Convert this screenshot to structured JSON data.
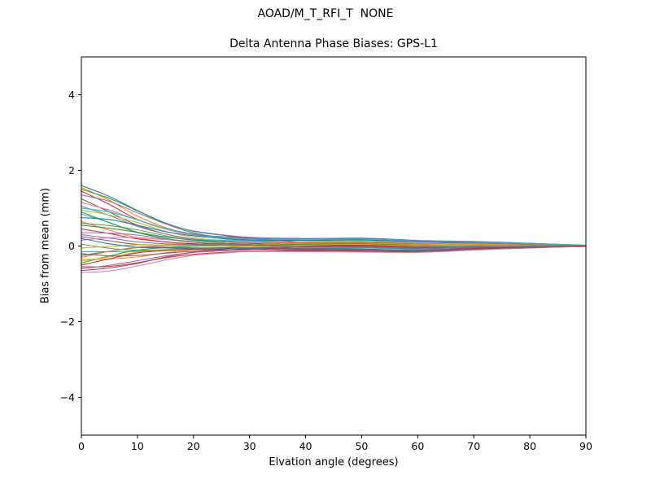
{
  "chart_data": {
    "type": "line",
    "suptitle": "AOAD/M_T_RFI_T  NONE",
    "title": "Delta Antenna Phase Biases: GPS-L1",
    "xlabel": "Elvation angle (degrees)",
    "ylabel": "Bias from mean (mm)",
    "xlim": [
      0,
      90
    ],
    "ylim": [
      -5,
      5
    ],
    "xticks": [
      0,
      10,
      20,
      30,
      40,
      50,
      60,
      70,
      80,
      90
    ],
    "xtick_labels": [
      "0",
      "10",
      "20",
      "30",
      "40",
      "50",
      "60",
      "70",
      "80",
      "90"
    ],
    "yticks": [
      -4,
      -2,
      0,
      2,
      4
    ],
    "ytick_labels": [
      "−4",
      "−2",
      "0",
      "2",
      "4"
    ],
    "grid": false,
    "legend": "none",
    "frame_color": "#000000",
    "palette": [
      "#1f77b4",
      "#ff7f0e",
      "#2ca02c",
      "#d62728",
      "#9467bd",
      "#8c564b",
      "#e377c2",
      "#7f7f7f",
      "#bcbd22",
      "#17becf"
    ],
    "x": [
      0,
      5,
      10,
      15,
      20,
      25,
      30,
      40,
      50,
      60,
      70,
      80,
      90
    ],
    "series": [
      {
        "name": "line-01",
        "values": [
          1.6,
          1.31,
          0.94,
          0.61,
          0.39,
          0.29,
          0.21,
          0.18,
          0.2,
          0.14,
          0.12,
          0.07,
          0.02
        ]
      },
      {
        "name": "line-02",
        "values": [
          1.55,
          1.21,
          0.79,
          0.49,
          0.3,
          0.22,
          0.17,
          0.07,
          0.08,
          0.03,
          0.03,
          0.03,
          0.02
        ]
      },
      {
        "name": "line-03",
        "values": [
          1.5,
          1.26,
          0.93,
          0.59,
          0.35,
          0.22,
          0.14,
          0.15,
          0.18,
          0.12,
          0.06,
          0.06,
          0.02
        ]
      },
      {
        "name": "line-04",
        "values": [
          1.45,
          1.1,
          0.7,
          0.45,
          0.3,
          0.25,
          0.21,
          0.09,
          0.06,
          0.0,
          0.03,
          0.03,
          0.01
        ]
      },
      {
        "name": "line-05",
        "values": [
          1.35,
          1.18,
          0.88,
          0.59,
          0.4,
          0.3,
          0.23,
          0.2,
          0.21,
          0.15,
          0.12,
          0.07,
          0.01
        ]
      },
      {
        "name": "line-06",
        "values": [
          1.25,
          0.9,
          0.55,
          0.32,
          0.18,
          0.12,
          0.08,
          0.01,
          0.0,
          -0.03,
          -0.01,
          0.01,
          0.01
        ]
      },
      {
        "name": "line-07",
        "values": [
          1.15,
          0.95,
          0.69,
          0.45,
          0.29,
          0.21,
          0.16,
          0.14,
          0.16,
          0.11,
          0.1,
          0.05,
          0.01
        ]
      },
      {
        "name": "line-08",
        "values": [
          1.05,
          0.81,
          0.52,
          0.32,
          0.19,
          0.14,
          0.11,
          0.03,
          0.04,
          -0.01,
          0.0,
          0.01,
          0.01
        ]
      },
      {
        "name": "line-09",
        "values": [
          0.95,
          0.82,
          0.62,
          0.39,
          0.23,
          0.13,
          0.07,
          0.11,
          0.14,
          0.08,
          0.03,
          0.04,
          0.01
        ]
      },
      {
        "name": "line-10",
        "values": [
          0.85,
          0.62,
          0.37,
          0.24,
          0.17,
          0.16,
          0.14,
          0.04,
          0.01,
          -0.04,
          0.0,
          0.02,
          0.01
        ]
      },
      {
        "name": "line-11",
        "values": [
          0.75,
          0.7,
          0.55,
          0.38,
          0.27,
          0.2,
          0.16,
          0.15,
          0.16,
          0.11,
          0.09,
          0.05,
          0.01
        ]
      },
      {
        "name": "line-12",
        "values": [
          0.65,
          0.42,
          0.22,
          0.11,
          0.04,
          0.02,
          0.01,
          -0.04,
          -0.05,
          -0.07,
          -0.04,
          -0.01,
          0.01
        ]
      },
      {
        "name": "line-13",
        "values": [
          0.55,
          0.47,
          0.36,
          0.24,
          0.16,
          0.12,
          0.09,
          0.09,
          0.11,
          0.07,
          0.07,
          0.04,
          0.01
        ]
      },
      {
        "name": "line-14",
        "values": [
          0.45,
          0.33,
          0.19,
          0.11,
          0.06,
          0.04,
          0.03,
          -0.01,
          0.0,
          -0.05,
          -0.03,
          -0.01,
          0.0
        ]
      },
      {
        "name": "line-15",
        "values": [
          0.35,
          0.34,
          0.29,
          0.18,
          0.1,
          0.04,
          0.0,
          0.06,
          0.09,
          0.03,
          0.0,
          0.02,
          0.0
        ]
      },
      {
        "name": "line-16",
        "values": [
          0.25,
          0.14,
          0.04,
          0.03,
          0.04,
          0.06,
          0.07,
          -0.01,
          -0.04,
          -0.08,
          -0.03,
          0.0,
          0.0
        ]
      },
      {
        "name": "line-17",
        "values": [
          0.15,
          0.22,
          0.22,
          0.17,
          0.13,
          0.1,
          0.09,
          0.1,
          0.11,
          0.07,
          0.06,
          0.03,
          0.0
        ]
      },
      {
        "name": "line-18",
        "values": [
          0.05,
          -0.06,
          -0.11,
          -0.1,
          -0.09,
          -0.07,
          -0.06,
          -0.09,
          -0.1,
          -0.12,
          -0.07,
          -0.03,
          0.0
        ]
      },
      {
        "name": "line-19",
        "values": [
          -0.05,
          -0.01,
          0.03,
          0.03,
          0.03,
          0.02,
          0.01,
          0.05,
          0.07,
          0.03,
          0.04,
          0.02,
          0.0
        ]
      },
      {
        "name": "line-20",
        "values": [
          -0.15,
          -0.15,
          -0.14,
          -0.1,
          -0.07,
          -0.05,
          -0.04,
          -0.06,
          -0.05,
          -0.09,
          -0.06,
          -0.02,
          0.0
        ]
      },
      {
        "name": "line-21",
        "values": [
          -0.25,
          -0.14,
          -0.04,
          -0.03,
          -0.04,
          -0.06,
          -0.07,
          0.01,
          0.04,
          -0.01,
          -0.03,
          0.0,
          0.0
        ]
      },
      {
        "name": "line-22",
        "values": [
          -0.35,
          -0.34,
          -0.29,
          -0.18,
          -0.1,
          -0.04,
          0.0,
          -0.06,
          -0.09,
          -0.12,
          -0.06,
          -0.02,
          0.0
        ]
      },
      {
        "name": "line-23",
        "values": [
          -0.45,
          -0.26,
          -0.11,
          -0.04,
          0.0,
          0.01,
          0.02,
          0.05,
          0.06,
          0.03,
          0.03,
          0.02,
          0.0
        ]
      },
      {
        "name": "line-24",
        "values": [
          -0.55,
          -0.54,
          -0.44,
          -0.31,
          -0.22,
          -0.17,
          -0.14,
          -0.13,
          -0.14,
          -0.16,
          -0.1,
          -0.05,
          -0.01
        ]
      },
      {
        "name": "line-25",
        "values": [
          -0.6,
          -0.51,
          -0.39,
          -0.26,
          -0.17,
          -0.13,
          -0.09,
          -0.1,
          -0.09,
          -0.12,
          -0.08,
          -0.04,
          -0.01
        ]
      },
      {
        "name": "line-26",
        "values": [
          -0.65,
          -0.58,
          -0.46,
          -0.29,
          -0.16,
          -0.08,
          -0.04,
          -0.08,
          -0.11,
          -0.15,
          -0.07,
          -0.03,
          -0.01
        ]
      },
      {
        "name": "line-27",
        "values": [
          -0.7,
          -0.66,
          -0.53,
          -0.37,
          -0.25,
          -0.19,
          -0.15,
          -0.15,
          -0.16,
          -0.17,
          -0.11,
          -0.05,
          -0.01
        ]
      },
      {
        "name": "line-28",
        "values": [
          0.6,
          0.54,
          0.43,
          0.27,
          0.15,
          0.08,
          0.03,
          0.08,
          0.11,
          0.05,
          0.01,
          0.03,
          0.01
        ]
      },
      {
        "name": "line-29",
        "values": [
          -0.4,
          -0.29,
          -0.16,
          -0.09,
          -0.05,
          -0.03,
          -0.03,
          0.02,
          0.04,
          0.0,
          0.02,
          0.01,
          0.0
        ]
      },
      {
        "name": "line-30",
        "values": [
          1.0,
          0.9,
          0.69,
          0.47,
          0.32,
          0.24,
          0.19,
          0.17,
          0.18,
          0.13,
          0.1,
          0.06,
          0.01
        ]
      },
      {
        "name": "line-31",
        "values": [
          0.2,
          0.06,
          -0.03,
          -0.05,
          -0.06,
          -0.05,
          -0.05,
          -0.07,
          -0.08,
          -0.11,
          -0.06,
          -0.02,
          0.0
        ]
      },
      {
        "name": "line-32",
        "values": [
          -0.3,
          -0.14,
          -0.03,
          0.01,
          0.03,
          0.03,
          0.03,
          0.07,
          0.08,
          0.04,
          0.03,
          0.02,
          0.0
        ]
      },
      {
        "name": "line-33",
        "values": [
          0.9,
          0.62,
          0.36,
          0.2,
          0.1,
          0.06,
          0.04,
          -0.02,
          -0.03,
          -0.06,
          -0.02,
          0.0,
          0.01
        ]
      },
      {
        "name": "line-34",
        "values": [
          -0.5,
          -0.34,
          -0.18,
          -0.12,
          -0.09,
          -0.1,
          -0.1,
          -0.01,
          0.02,
          -0.03,
          -0.05,
          -0.01,
          -0.01
        ]
      },
      {
        "name": "line-35",
        "values": [
          0.3,
          0.21,
          0.11,
          0.06,
          0.03,
          0.02,
          0.02,
          -0.03,
          -0.02,
          -0.06,
          -0.03,
          -0.01,
          0.0
        ]
      },
      {
        "name": "line-36",
        "values": [
          -0.2,
          -0.26,
          -0.25,
          -0.19,
          -0.14,
          -0.11,
          -0.09,
          -0.11,
          -0.12,
          -0.13,
          -0.08,
          -0.04,
          0.0
        ]
      }
    ]
  }
}
